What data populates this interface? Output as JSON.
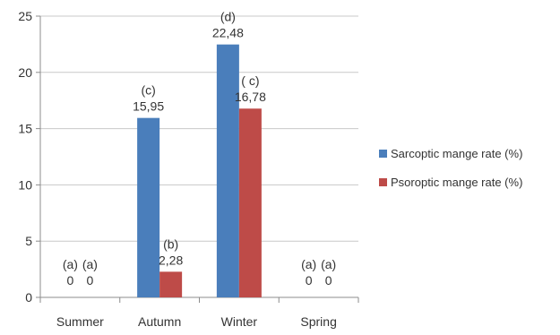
{
  "chart_data": {
    "type": "bar",
    "categories": [
      "Summer",
      "Autumn",
      "Winter",
      "Spring"
    ],
    "series": [
      {
        "name": "Sarcoptic mange rate (%)",
        "color": "#4a7ebb",
        "values": [
          0,
          15.95,
          22.48,
          0
        ],
        "value_labels": [
          "0",
          "15,95",
          "22,48",
          "0"
        ],
        "group_labels": [
          "(a)",
          "(c)",
          "(d)",
          "(a)"
        ]
      },
      {
        "name": "Psoroptic mange rate (%)",
        "color": "#be4b48",
        "values": [
          0,
          2.28,
          16.78,
          0
        ],
        "value_labels": [
          "0",
          "2,28",
          "16,78",
          "0"
        ],
        "group_labels": [
          "(a)",
          "(b)",
          "( c)",
          "(a)"
        ]
      }
    ],
    "ylim": [
      0,
      25
    ],
    "yticks": [
      "0",
      "5",
      "10",
      "15",
      "20",
      "25"
    ],
    "grid": true,
    "legend_position": "right"
  }
}
